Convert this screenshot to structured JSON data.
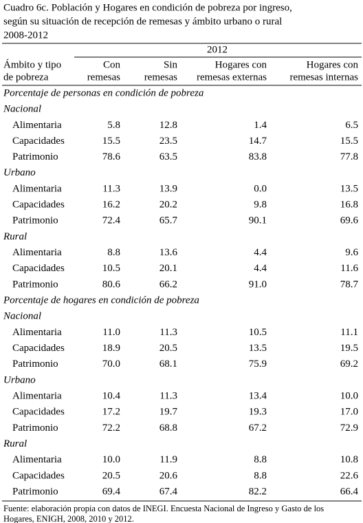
{
  "title": [
    "Cuadro 6c. Población y Hogares en condición de pobreza por ingreso,",
    "según su situación de recepción de remesas y ámbito urbano o rural",
    "2008-2012"
  ],
  "header": {
    "row_header": [
      "Ámbito y tipo",
      "de pobreza"
    ],
    "year": "2012",
    "columns": [
      [
        "Con",
        "remesas"
      ],
      [
        "Sin",
        "remesas"
      ],
      [
        "Hogares con",
        "remesas externas"
      ],
      [
        "Hogares con",
        "remesas internas"
      ]
    ]
  },
  "sections": [
    {
      "title": "Porcentaje de personas en condición de pobreza",
      "groups": [
        {
          "name": "Nacional",
          "rows": [
            {
              "label": "Alimentaria",
              "values": [
                "5.8",
                "12.8",
                "1.4",
                "6.5"
              ]
            },
            {
              "label": "Capacidades",
              "values": [
                "15.5",
                "23.5",
                "14.7",
                "15.5"
              ]
            },
            {
              "label": "Patrimonio",
              "values": [
                "78.6",
                "63.5",
                "83.8",
                "77.8"
              ]
            }
          ]
        },
        {
          "name": "Urbano",
          "rows": [
            {
              "label": "Alimentaria",
              "values": [
                "11.3",
                "13.9",
                "0.0",
                "13.5"
              ]
            },
            {
              "label": "Capacidades",
              "values": [
                "16.2",
                "20.2",
                "9.8",
                "16.8"
              ]
            },
            {
              "label": "Patrimonio",
              "values": [
                "72.4",
                "65.7",
                "90.1",
                "69.6"
              ]
            }
          ]
        },
        {
          "name": "Rural",
          "rows": [
            {
              "label": "Alimentaria",
              "values": [
                "8.8",
                "13.6",
                "4.4",
                "9.6"
              ]
            },
            {
              "label": "Capacidades",
              "values": [
                "10.5",
                "20.1",
                "4.4",
                "11.6"
              ]
            },
            {
              "label": "Patrimonio",
              "values": [
                "80.6",
                "66.2",
                "91.0",
                "78.7"
              ]
            }
          ]
        }
      ]
    },
    {
      "title": "Porcentaje de hogares en condición de pobreza",
      "groups": [
        {
          "name": "Nacional",
          "rows": [
            {
              "label": "Alimentaria",
              "values": [
                "11.0",
                "11.3",
                "10.5",
                "11.1"
              ]
            },
            {
              "label": "Capacidades",
              "values": [
                "18.9",
                "20.5",
                "13.5",
                "19.5"
              ]
            },
            {
              "label": "Patrimonio",
              "values": [
                "70.0",
                "68.1",
                "75.9",
                "69.2"
              ]
            }
          ]
        },
        {
          "name": "Urbano",
          "rows": [
            {
              "label": "Alimentaria",
              "values": [
                "10.4",
                "11.3",
                "13.4",
                "10.0"
              ]
            },
            {
              "label": "Capacidades",
              "values": [
                "17.2",
                "19.7",
                "19.3",
                "17.0"
              ]
            },
            {
              "label": "Patrimonio",
              "values": [
                "72.2",
                "68.8",
                "67.2",
                "72.9"
              ]
            }
          ]
        },
        {
          "name": "Rural",
          "rows": [
            {
              "label": "Alimentaria",
              "values": [
                "10.0",
                "11.9",
                "8.8",
                "10.8"
              ]
            },
            {
              "label": "Capacidades",
              "values": [
                "20.5",
                "20.6",
                "8.8",
                "22.6"
              ]
            },
            {
              "label": "Patrimonio",
              "values": [
                "69.4",
                "67.4",
                "82.2",
                "66.4"
              ]
            }
          ]
        }
      ]
    }
  ],
  "footer": [
    "Fuente: elaboración propia con datos de INEGI. Encuesta Nacional de Ingreso y Gasto de los",
    "Hogares, ENIGH, 2008, 2010 y 2012."
  ]
}
